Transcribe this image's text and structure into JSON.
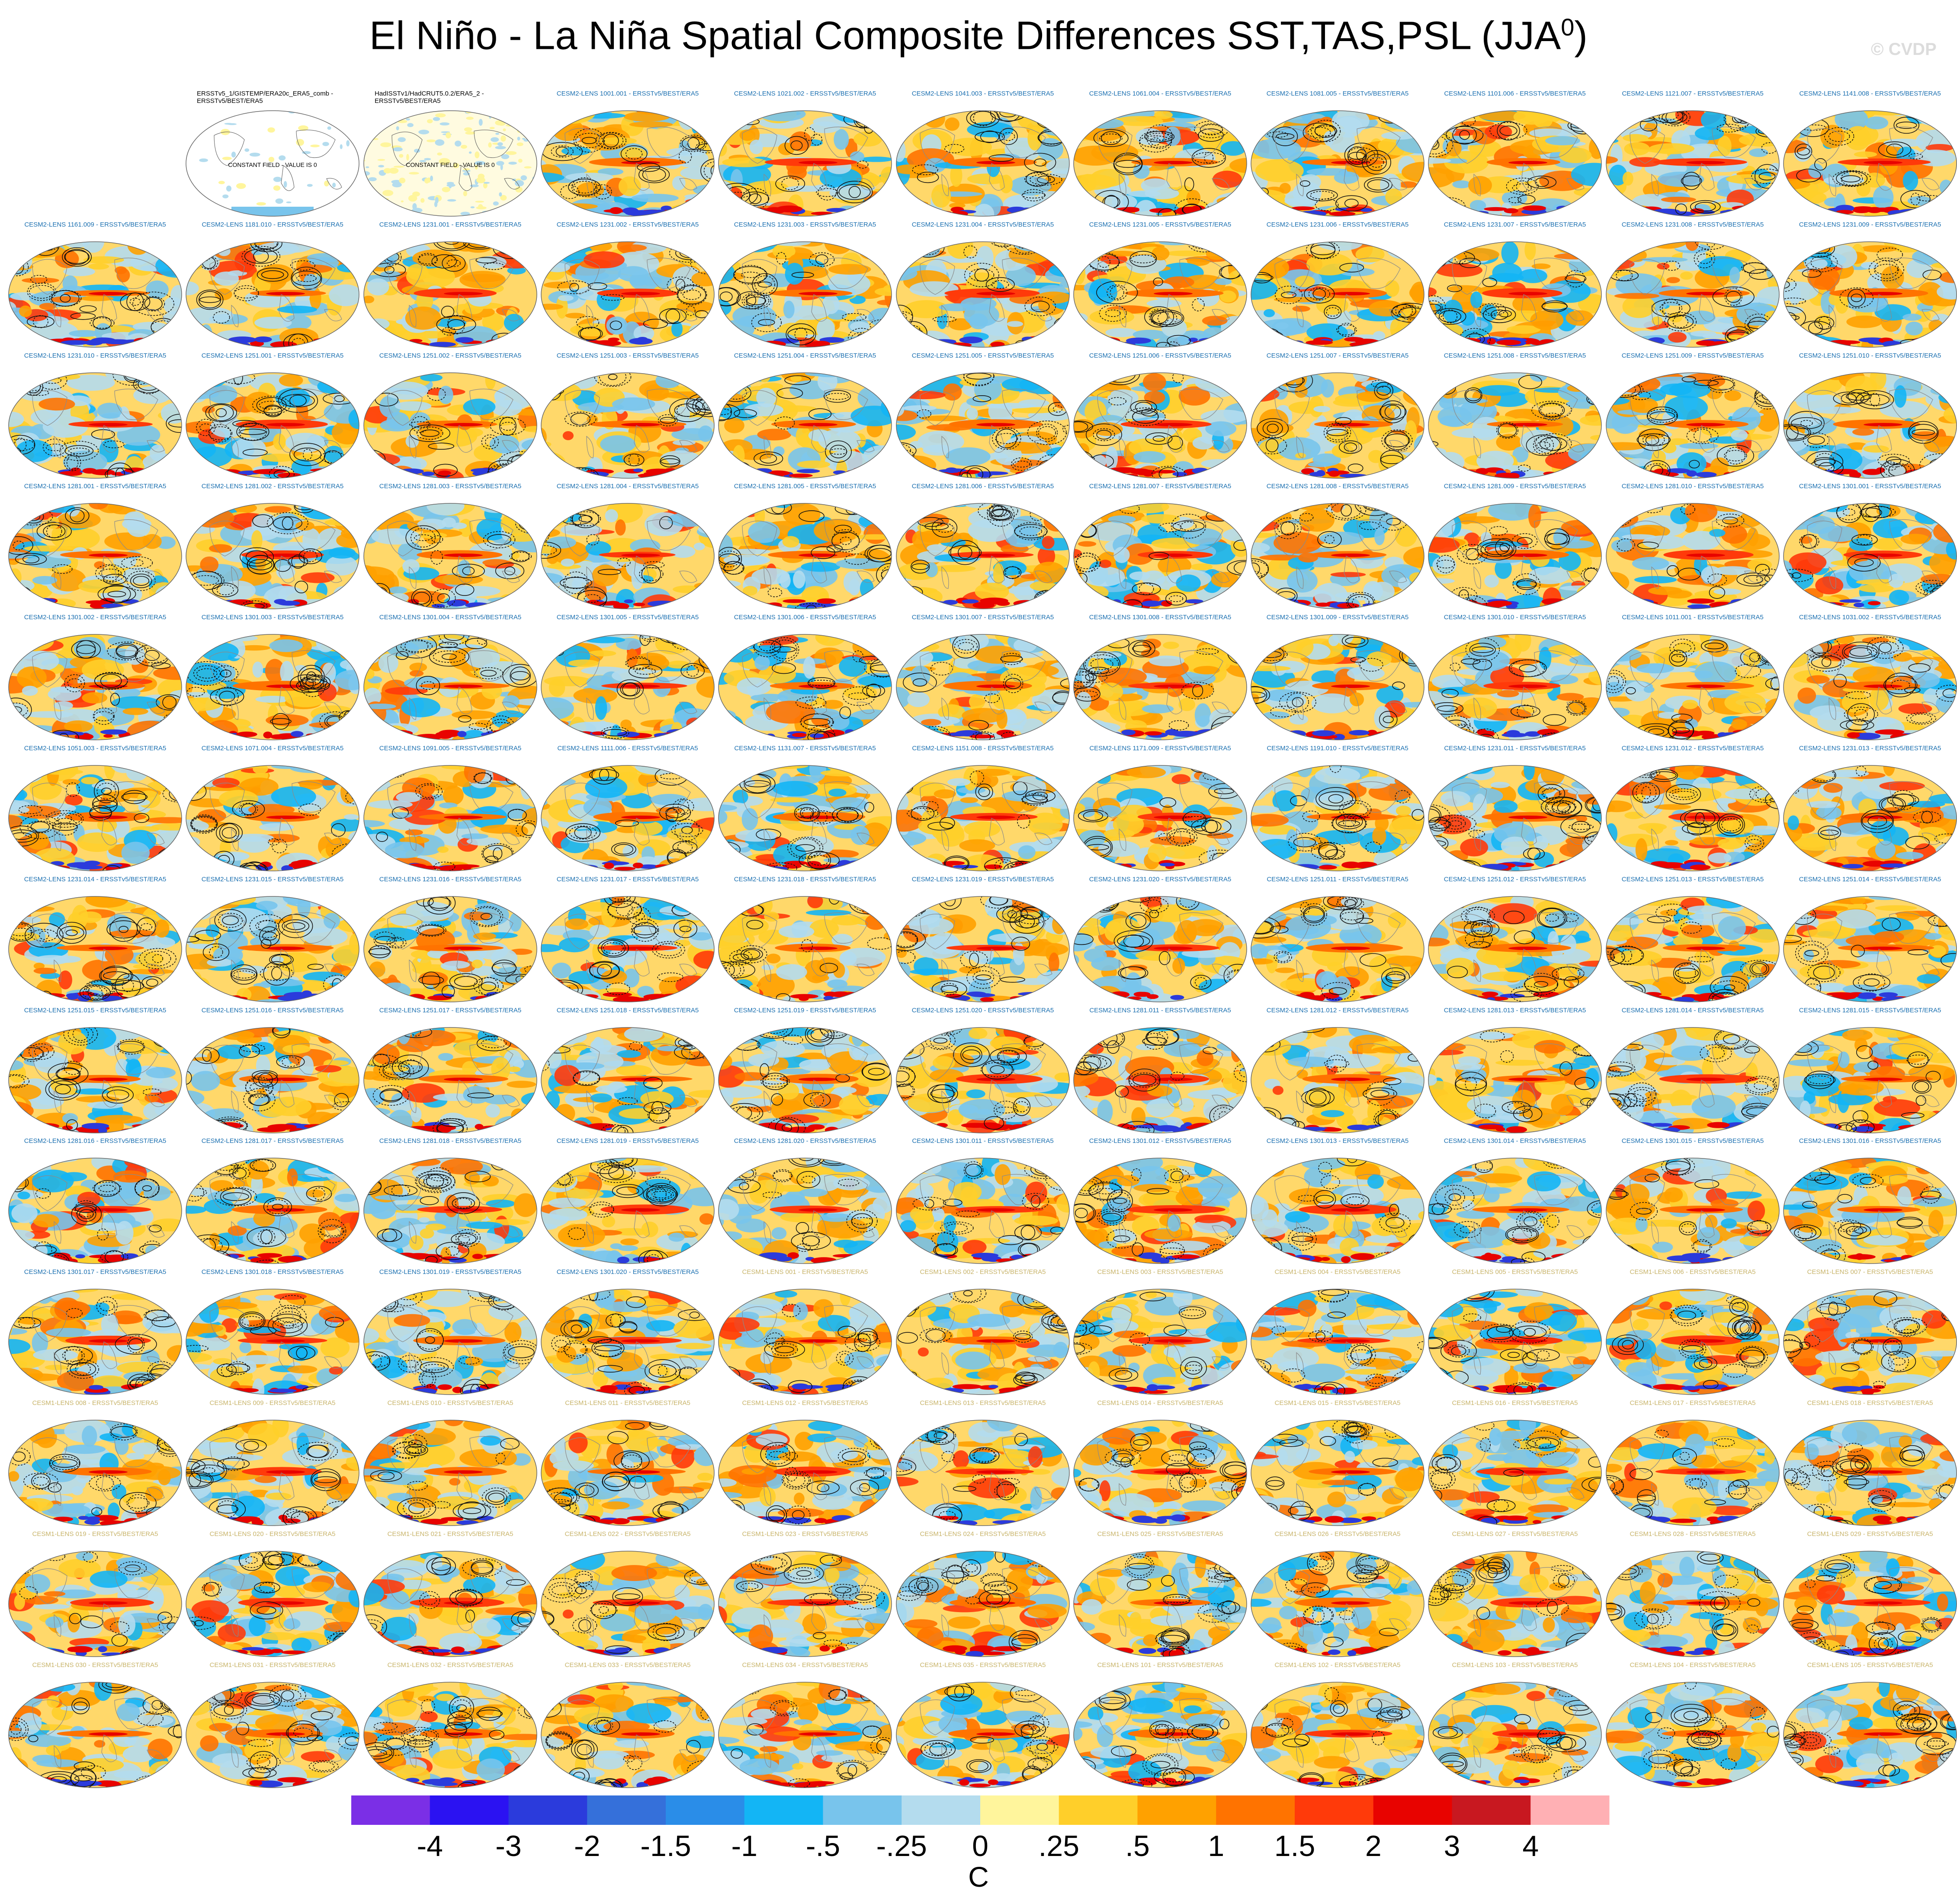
{
  "page": {
    "title": "El Niño - La Niña Spatial Composite Differences SST,TAS,PSL (JJA",
    "title_superscript": "0",
    "title_close": ")",
    "watermark": "© CVDP",
    "units": "C"
  },
  "chart_data": {
    "type": "heatmap",
    "layout": "grid of global map panels",
    "grid": {
      "rows": 13,
      "columns": 11
    },
    "panel_colors": {
      "CESM2-LENS": "#1a6fb0",
      "CESM1-LENS": "#c8b46a",
      "observations": "#000000"
    },
    "colorbar": {
      "labels": [
        "-4",
        "-3",
        "-2",
        "-1.5",
        "-1",
        "-.5",
        "-.25",
        "0",
        ".25",
        ".5",
        "1",
        "1.5",
        "2",
        "3",
        "4"
      ],
      "colors": [
        "#7b2fe6",
        "#2b12f2",
        "#2b3bdc",
        "#3570da",
        "#2a8de8",
        "#13b5f5",
        "#78c4ec",
        "#b4dcee",
        "#fff59c",
        "#ffcf2a",
        "#ffa100",
        "#ff7300",
        "#ff3a0a",
        "#e80300",
        "#c81820",
        "#ffb0b4"
      ]
    },
    "panels": [
      {
        "title": "",
        "kind": "blank"
      },
      {
        "title": "ERSSTv5_1/GISTEMP/ERA20c_ERA5_comb - ERSSTv5/BEST/ERA5",
        "kind": "obs",
        "note": "CONSTANT FIELD - VALUE IS 0"
      },
      {
        "title": "HadISSTv1/HadCRUT5.0.2/ERA5_2 - ERSSTv5/BEST/ERA5",
        "kind": "obs",
        "note": "CONSTANT FIELD - VALUE IS 0"
      },
      {
        "title": "CESM2-LENS 1001.001 - ERSSTv5/BEST/ERA5",
        "kind": "cesm2"
      },
      {
        "title": "CESM2-LENS 1021.002 - ERSSTv5/BEST/ERA5",
        "kind": "cesm2"
      },
      {
        "title": "CESM2-LENS 1041.003 - ERSSTv5/BEST/ERA5",
        "kind": "cesm2"
      },
      {
        "title": "CESM2-LENS 1061.004 - ERSSTv5/BEST/ERA5",
        "kind": "cesm2"
      },
      {
        "title": "CESM2-LENS 1081.005 - ERSSTv5/BEST/ERA5",
        "kind": "cesm2"
      },
      {
        "title": "CESM2-LENS 1101.006 - ERSSTv5/BEST/ERA5",
        "kind": "cesm2"
      },
      {
        "title": "CESM2-LENS 1121.007 - ERSSTv5/BEST/ERA5",
        "kind": "cesm2"
      },
      {
        "title": "CESM2-LENS 1141.008 - ERSSTv5/BEST/ERA5",
        "kind": "cesm2"
      },
      {
        "title": "CESM2-LENS 1161.009 - ERSSTv5/BEST/ERA5",
        "kind": "cesm2"
      },
      {
        "title": "CESM2-LENS 1181.010 - ERSSTv5/BEST/ERA5",
        "kind": "cesm2"
      },
      {
        "title": "CESM2-LENS 1231.001 - ERSSTv5/BEST/ERA5",
        "kind": "cesm2"
      },
      {
        "title": "CESM2-LENS 1231.002 - ERSSTv5/BEST/ERA5",
        "kind": "cesm2"
      },
      {
        "title": "CESM2-LENS 1231.003 - ERSSTv5/BEST/ERA5",
        "kind": "cesm2"
      },
      {
        "title": "CESM2-LENS 1231.004 - ERSSTv5/BEST/ERA5",
        "kind": "cesm2"
      },
      {
        "title": "CESM2-LENS 1231.005 - ERSSTv5/BEST/ERA5",
        "kind": "cesm2"
      },
      {
        "title": "CESM2-LENS 1231.006 - ERSSTv5/BEST/ERA5",
        "kind": "cesm2"
      },
      {
        "title": "CESM2-LENS 1231.007 - ERSSTv5/BEST/ERA5",
        "kind": "cesm2"
      },
      {
        "title": "CESM2-LENS 1231.008 - ERSSTv5/BEST/ERA5",
        "kind": "cesm2"
      },
      {
        "title": "CESM2-LENS 1231.009 - ERSSTv5/BEST/ERA5",
        "kind": "cesm2"
      },
      {
        "title": "CESM2-LENS 1231.010 - ERSSTv5/BEST/ERA5",
        "kind": "cesm2"
      },
      {
        "title": "CESM2-LENS 1251.001 - ERSSTv5/BEST/ERA5",
        "kind": "cesm2"
      },
      {
        "title": "CESM2-LENS 1251.002 - ERSSTv5/BEST/ERA5",
        "kind": "cesm2"
      },
      {
        "title": "CESM2-LENS 1251.003 - ERSSTv5/BEST/ERA5",
        "kind": "cesm2"
      },
      {
        "title": "CESM2-LENS 1251.004 - ERSSTv5/BEST/ERA5",
        "kind": "cesm2"
      },
      {
        "title": "CESM2-LENS 1251.005 - ERSSTv5/BEST/ERA5",
        "kind": "cesm2"
      },
      {
        "title": "CESM2-LENS 1251.006 - ERSSTv5/BEST/ERA5",
        "kind": "cesm2"
      },
      {
        "title": "CESM2-LENS 1251.007 - ERSSTv5/BEST/ERA5",
        "kind": "cesm2"
      },
      {
        "title": "CESM2-LENS 1251.008 - ERSSTv5/BEST/ERA5",
        "kind": "cesm2"
      },
      {
        "title": "CESM2-LENS 1251.009 - ERSSTv5/BEST/ERA5",
        "kind": "cesm2"
      },
      {
        "title": "CESM2-LENS 1251.010 - ERSSTv5/BEST/ERA5",
        "kind": "cesm2"
      },
      {
        "title": "CESM2-LENS 1281.001 - ERSSTv5/BEST/ERA5",
        "kind": "cesm2"
      },
      {
        "title": "CESM2-LENS 1281.002 - ERSSTv5/BEST/ERA5",
        "kind": "cesm2"
      },
      {
        "title": "CESM2-LENS 1281.003 - ERSSTv5/BEST/ERA5",
        "kind": "cesm2"
      },
      {
        "title": "CESM2-LENS 1281.004 - ERSSTv5/BEST/ERA5",
        "kind": "cesm2"
      },
      {
        "title": "CESM2-LENS 1281.005 - ERSSTv5/BEST/ERA5",
        "kind": "cesm2"
      },
      {
        "title": "CESM2-LENS 1281.006 - ERSSTv5/BEST/ERA5",
        "kind": "cesm2"
      },
      {
        "title": "CESM2-LENS 1281.007 - ERSSTv5/BEST/ERA5",
        "kind": "cesm2"
      },
      {
        "title": "CESM2-LENS 1281.008 - ERSSTv5/BEST/ERA5",
        "kind": "cesm2"
      },
      {
        "title": "CESM2-LENS 1281.009 - ERSSTv5/BEST/ERA5",
        "kind": "cesm2"
      },
      {
        "title": "CESM2-LENS 1281.010 - ERSSTv5/BEST/ERA5",
        "kind": "cesm2"
      },
      {
        "title": "CESM2-LENS 1301.001 - ERSSTv5/BEST/ERA5",
        "kind": "cesm2"
      },
      {
        "title": "CESM2-LENS 1301.002 - ERSSTv5/BEST/ERA5",
        "kind": "cesm2"
      },
      {
        "title": "CESM2-LENS 1301.003 - ERSSTv5/BEST/ERA5",
        "kind": "cesm2"
      },
      {
        "title": "CESM2-LENS 1301.004 - ERSSTv5/BEST/ERA5",
        "kind": "cesm2"
      },
      {
        "title": "CESM2-LENS 1301.005 - ERSSTv5/BEST/ERA5",
        "kind": "cesm2"
      },
      {
        "title": "CESM2-LENS 1301.006 - ERSSTv5/BEST/ERA5",
        "kind": "cesm2"
      },
      {
        "title": "CESM2-LENS 1301.007 - ERSSTv5/BEST/ERA5",
        "kind": "cesm2"
      },
      {
        "title": "CESM2-LENS 1301.008 - ERSSTv5/BEST/ERA5",
        "kind": "cesm2"
      },
      {
        "title": "CESM2-LENS 1301.009 - ERSSTv5/BEST/ERA5",
        "kind": "cesm2"
      },
      {
        "title": "CESM2-LENS 1301.010 - ERSSTv5/BEST/ERA5",
        "kind": "cesm2"
      },
      {
        "title": "CESM2-LENS 1011.001 - ERSSTv5/BEST/ERA5",
        "kind": "cesm2"
      },
      {
        "title": "CESM2-LENS 1031.002 - ERSSTv5/BEST/ERA5",
        "kind": "cesm2"
      },
      {
        "title": "CESM2-LENS 1051.003 - ERSSTv5/BEST/ERA5",
        "kind": "cesm2"
      },
      {
        "title": "CESM2-LENS 1071.004 - ERSSTv5/BEST/ERA5",
        "kind": "cesm2"
      },
      {
        "title": "CESM2-LENS 1091.005 - ERSSTv5/BEST/ERA5",
        "kind": "cesm2"
      },
      {
        "title": "CESM2-LENS 1111.006 - ERSSTv5/BEST/ERA5",
        "kind": "cesm2"
      },
      {
        "title": "CESM2-LENS 1131.007 - ERSSTv5/BEST/ERA5",
        "kind": "cesm2"
      },
      {
        "title": "CESM2-LENS 1151.008 - ERSSTv5/BEST/ERA5",
        "kind": "cesm2"
      },
      {
        "title": "CESM2-LENS 1171.009 - ERSSTv5/BEST/ERA5",
        "kind": "cesm2"
      },
      {
        "title": "CESM2-LENS 1191.010 - ERSSTv5/BEST/ERA5",
        "kind": "cesm2"
      },
      {
        "title": "CESM2-LENS 1231.011 - ERSSTv5/BEST/ERA5",
        "kind": "cesm2"
      },
      {
        "title": "CESM2-LENS 1231.012 - ERSSTv5/BEST/ERA5",
        "kind": "cesm2"
      },
      {
        "title": "CESM2-LENS 1231.013 - ERSSTv5/BEST/ERA5",
        "kind": "cesm2"
      },
      {
        "title": "CESM2-LENS 1231.014 - ERSSTv5/BEST/ERA5",
        "kind": "cesm2"
      },
      {
        "title": "CESM2-LENS 1231.015 - ERSSTv5/BEST/ERA5",
        "kind": "cesm2"
      },
      {
        "title": "CESM2-LENS 1231.016 - ERSSTv5/BEST/ERA5",
        "kind": "cesm2"
      },
      {
        "title": "CESM2-LENS 1231.017 - ERSSTv5/BEST/ERA5",
        "kind": "cesm2"
      },
      {
        "title": "CESM2-LENS 1231.018 - ERSSTv5/BEST/ERA5",
        "kind": "cesm2"
      },
      {
        "title": "CESM2-LENS 1231.019 - ERSSTv5/BEST/ERA5",
        "kind": "cesm2"
      },
      {
        "title": "CESM2-LENS 1231.020 - ERSSTv5/BEST/ERA5",
        "kind": "cesm2"
      },
      {
        "title": "CESM2-LENS 1251.011 - ERSSTv5/BEST/ERA5",
        "kind": "cesm2"
      },
      {
        "title": "CESM2-LENS 1251.012 - ERSSTv5/BEST/ERA5",
        "kind": "cesm2"
      },
      {
        "title": "CESM2-LENS 1251.013 - ERSSTv5/BEST/ERA5",
        "kind": "cesm2"
      },
      {
        "title": "CESM2-LENS 1251.014 - ERSSTv5/BEST/ERA5",
        "kind": "cesm2"
      },
      {
        "title": "CESM2-LENS 1251.015 - ERSSTv5/BEST/ERA5",
        "kind": "cesm2"
      },
      {
        "title": "CESM2-LENS 1251.016 - ERSSTv5/BEST/ERA5",
        "kind": "cesm2"
      },
      {
        "title": "CESM2-LENS 1251.017 - ERSSTv5/BEST/ERA5",
        "kind": "cesm2"
      },
      {
        "title": "CESM2-LENS 1251.018 - ERSSTv5/BEST/ERA5",
        "kind": "cesm2"
      },
      {
        "title": "CESM2-LENS 1251.019 - ERSSTv5/BEST/ERA5",
        "kind": "cesm2"
      },
      {
        "title": "CESM2-LENS 1251.020 - ERSSTv5/BEST/ERA5",
        "kind": "cesm2"
      },
      {
        "title": "CESM2-LENS 1281.011 - ERSSTv5/BEST/ERA5",
        "kind": "cesm2"
      },
      {
        "title": "CESM2-LENS 1281.012 - ERSSTv5/BEST/ERA5",
        "kind": "cesm2"
      },
      {
        "title": "CESM2-LENS 1281.013 - ERSSTv5/BEST/ERA5",
        "kind": "cesm2"
      },
      {
        "title": "CESM2-LENS 1281.014 - ERSSTv5/BEST/ERA5",
        "kind": "cesm2"
      },
      {
        "title": "CESM2-LENS 1281.015 - ERSSTv5/BEST/ERA5",
        "kind": "cesm2"
      },
      {
        "title": "CESM2-LENS 1281.016 - ERSSTv5/BEST/ERA5",
        "kind": "cesm2"
      },
      {
        "title": "CESM2-LENS 1281.017 - ERSSTv5/BEST/ERA5",
        "kind": "cesm2"
      },
      {
        "title": "CESM2-LENS 1281.018 - ERSSTv5/BEST/ERA5",
        "kind": "cesm2"
      },
      {
        "title": "CESM2-LENS 1281.019 - ERSSTv5/BEST/ERA5",
        "kind": "cesm2"
      },
      {
        "title": "CESM2-LENS 1281.020 - ERSSTv5/BEST/ERA5",
        "kind": "cesm2"
      },
      {
        "title": "CESM2-LENS 1301.011 - ERSSTv5/BEST/ERA5",
        "kind": "cesm2"
      },
      {
        "title": "CESM2-LENS 1301.012 - ERSSTv5/BEST/ERA5",
        "kind": "cesm2"
      },
      {
        "title": "CESM2-LENS 1301.013 - ERSSTv5/BEST/ERA5",
        "kind": "cesm2"
      },
      {
        "title": "CESM2-LENS 1301.014 - ERSSTv5/BEST/ERA5",
        "kind": "cesm2"
      },
      {
        "title": "CESM2-LENS 1301.015 - ERSSTv5/BEST/ERA5",
        "kind": "cesm2"
      },
      {
        "title": "CESM2-LENS 1301.016 - ERSSTv5/BEST/ERA5",
        "kind": "cesm2"
      },
      {
        "title": "CESM2-LENS 1301.017 - ERSSTv5/BEST/ERA5",
        "kind": "cesm2"
      },
      {
        "title": "CESM2-LENS 1301.018 - ERSSTv5/BEST/ERA5",
        "kind": "cesm2"
      },
      {
        "title": "CESM2-LENS 1301.019 - ERSSTv5/BEST/ERA5",
        "kind": "cesm2"
      },
      {
        "title": "CESM2-LENS 1301.020 - ERSSTv5/BEST/ERA5",
        "kind": "cesm2"
      },
      {
        "title": "CESM1-LENS 001 - ERSSTv5/BEST/ERA5",
        "kind": "cesm1"
      },
      {
        "title": "CESM1-LENS 002 - ERSSTv5/BEST/ERA5",
        "kind": "cesm1"
      },
      {
        "title": "CESM1-LENS 003 - ERSSTv5/BEST/ERA5",
        "kind": "cesm1"
      },
      {
        "title": "CESM1-LENS 004 - ERSSTv5/BEST/ERA5",
        "kind": "cesm1"
      },
      {
        "title": "CESM1-LENS 005 - ERSSTv5/BEST/ERA5",
        "kind": "cesm1"
      },
      {
        "title": "CESM1-LENS 006 - ERSSTv5/BEST/ERA5",
        "kind": "cesm1"
      },
      {
        "title": "CESM1-LENS 007 - ERSSTv5/BEST/ERA5",
        "kind": "cesm1"
      },
      {
        "title": "CESM1-LENS 008 - ERSSTv5/BEST/ERA5",
        "kind": "cesm1"
      },
      {
        "title": "CESM1-LENS 009 - ERSSTv5/BEST/ERA5",
        "kind": "cesm1"
      },
      {
        "title": "CESM1-LENS 010 - ERSSTv5/BEST/ERA5",
        "kind": "cesm1"
      },
      {
        "title": "CESM1-LENS 011 - ERSSTv5/BEST/ERA5",
        "kind": "cesm1"
      },
      {
        "title": "CESM1-LENS 012 - ERSSTv5/BEST/ERA5",
        "kind": "cesm1"
      },
      {
        "title": "CESM1-LENS 013 - ERSSTv5/BEST/ERA5",
        "kind": "cesm1"
      },
      {
        "title": "CESM1-LENS 014 - ERSSTv5/BEST/ERA5",
        "kind": "cesm1"
      },
      {
        "title": "CESM1-LENS 015 - ERSSTv5/BEST/ERA5",
        "kind": "cesm1"
      },
      {
        "title": "CESM1-LENS 016 - ERSSTv5/BEST/ERA5",
        "kind": "cesm1"
      },
      {
        "title": "CESM1-LENS 017 - ERSSTv5/BEST/ERA5",
        "kind": "cesm1"
      },
      {
        "title": "CESM1-LENS 018 - ERSSTv5/BEST/ERA5",
        "kind": "cesm1"
      },
      {
        "title": "CESM1-LENS 019 - ERSSTv5/BEST/ERA5",
        "kind": "cesm1"
      },
      {
        "title": "CESM1-LENS 020 - ERSSTv5/BEST/ERA5",
        "kind": "cesm1"
      },
      {
        "title": "CESM1-LENS 021 - ERSSTv5/BEST/ERA5",
        "kind": "cesm1"
      },
      {
        "title": "CESM1-LENS 022 - ERSSTv5/BEST/ERA5",
        "kind": "cesm1"
      },
      {
        "title": "CESM1-LENS 023 - ERSSTv5/BEST/ERA5",
        "kind": "cesm1"
      },
      {
        "title": "CESM1-LENS 024 - ERSSTv5/BEST/ERA5",
        "kind": "cesm1"
      },
      {
        "title": "CESM1-LENS 025 - ERSSTv5/BEST/ERA5",
        "kind": "cesm1"
      },
      {
        "title": "CESM1-LENS 026 - ERSSTv5/BEST/ERA5",
        "kind": "cesm1"
      },
      {
        "title": "CESM1-LENS 027 - ERSSTv5/BEST/ERA5",
        "kind": "cesm1"
      },
      {
        "title": "CESM1-LENS 028 - ERSSTv5/BEST/ERA5",
        "kind": "cesm1"
      },
      {
        "title": "CESM1-LENS 029 - ERSSTv5/BEST/ERA5",
        "kind": "cesm1"
      },
      {
        "title": "CESM1-LENS 030 - ERSSTv5/BEST/ERA5",
        "kind": "cesm1"
      },
      {
        "title": "CESM1-LENS 031 - ERSSTv5/BEST/ERA5",
        "kind": "cesm1"
      },
      {
        "title": "CESM1-LENS 032 - ERSSTv5/BEST/ERA5",
        "kind": "cesm1"
      },
      {
        "title": "CESM1-LENS 033 - ERSSTv5/BEST/ERA5",
        "kind": "cesm1"
      },
      {
        "title": "CESM1-LENS 034 - ERSSTv5/BEST/ERA5",
        "kind": "cesm1"
      },
      {
        "title": "CESM1-LENS 035 - ERSSTv5/BEST/ERA5",
        "kind": "cesm1"
      },
      {
        "title": "CESM1-LENS 101 - ERSSTv5/BEST/ERA5",
        "kind": "cesm1"
      },
      {
        "title": "CESM1-LENS 102 - ERSSTv5/BEST/ERA5",
        "kind": "cesm1"
      },
      {
        "title": "CESM1-LENS 103 - ERSSTv5/BEST/ERA5",
        "kind": "cesm1"
      },
      {
        "title": "CESM1-LENS 104 - ERSSTv5/BEST/ERA5",
        "kind": "cesm1"
      },
      {
        "title": "CESM1-LENS 105 - ERSSTv5/BEST/ERA5",
        "kind": "cesm1"
      }
    ]
  }
}
